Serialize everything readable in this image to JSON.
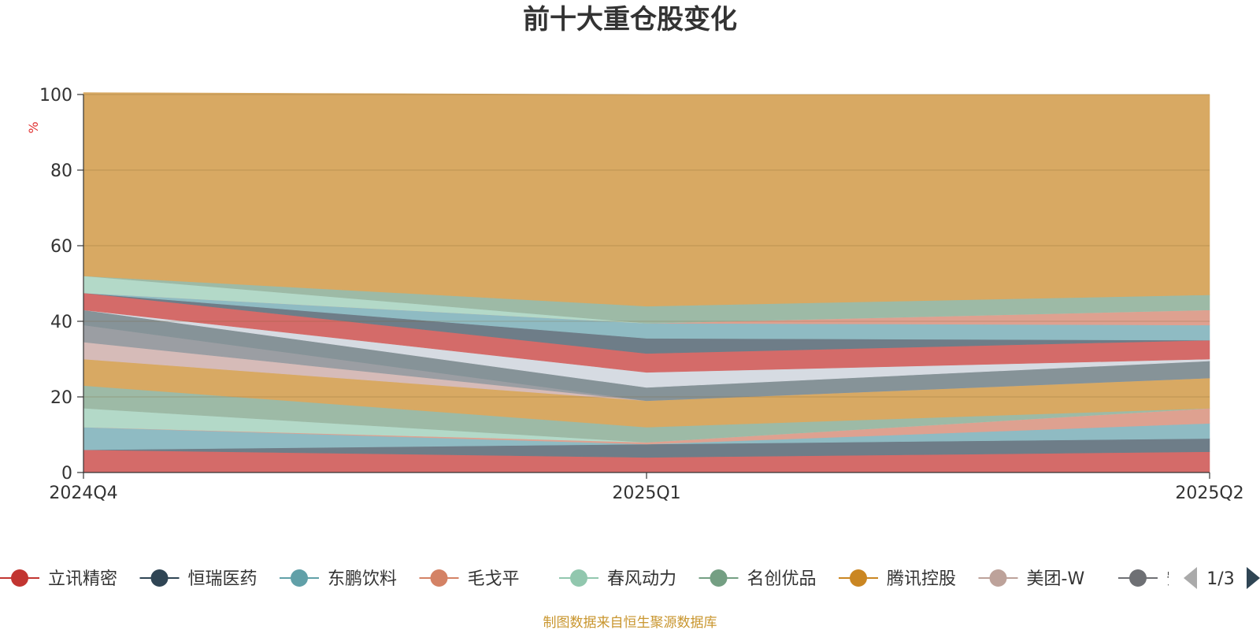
{
  "chart_data": {
    "type": "area",
    "stacked": true,
    "title": "前十大重仓股变化",
    "ylabel": "%",
    "ylim": [
      0,
      100
    ],
    "yticks": [
      0,
      20,
      40,
      60,
      80,
      100
    ],
    "grid": true,
    "categories": [
      "2024Q4",
      "2025Q1",
      "2025Q2"
    ],
    "series": [
      {
        "name": "立讯精密",
        "color": "#d46b69",
        "values": [
          6,
          4,
          5.5
        ]
      },
      {
        "name": "恒瑞医药",
        "color": "#6e7d88",
        "values": [
          0,
          3.5,
          3.5
        ]
      },
      {
        "name": "东鹏饮料",
        "color": "#8fbbc3",
        "values": [
          6,
          0,
          4
        ]
      },
      {
        "name": "毛戈平",
        "color": "#dea190",
        "values": [
          0,
          0.5,
          4
        ]
      },
      {
        "name": "春风动力",
        "color": "#b3d9c8",
        "values": [
          5,
          0,
          0
        ]
      },
      {
        "name": "名创优品",
        "color": "#9dbaa6",
        "values": [
          6,
          4,
          0
        ]
      },
      {
        "name": "腾讯控股",
        "color": "#d8a963",
        "values": [
          7,
          7,
          8
        ]
      },
      {
        "name": "美团-W",
        "color": "#d6bbb8",
        "values": [
          4.5,
          0,
          0
        ]
      },
      {
        "name": "安琪酵母",
        "color": "#9b9ea3",
        "values": [
          4.5,
          0,
          0
        ]
      },
      {
        "name": "",
        "color": "#869398",
        "values": [
          4,
          3.5,
          4.5
        ]
      },
      {
        "name": "",
        "color": "#d6dbe2",
        "values": [
          0,
          4,
          0.5
        ]
      },
      {
        "name": "",
        "color": "#d46b69",
        "values": [
          4.5,
          5,
          5
        ]
      },
      {
        "name": "",
        "color": "#6e7d88",
        "values": [
          0,
          4,
          0
        ]
      },
      {
        "name": "",
        "color": "#8fbbc3",
        "values": [
          0,
          4,
          4
        ]
      },
      {
        "name": "",
        "color": "#dea190",
        "values": [
          0,
          0,
          4
        ]
      },
      {
        "name": "",
        "color": "#b3d9c8",
        "values": [
          4.5,
          0,
          0
        ]
      },
      {
        "name": "",
        "color": "#9dbaa6",
        "values": [
          0,
          4.5,
          4
        ]
      },
      {
        "name": "",
        "color": "#d8a963",
        "values": [
          48.5,
          56,
          53
        ]
      }
    ],
    "legend": {
      "placement": "bottom",
      "items": [
        {
          "name": "立讯精密",
          "color": "#c23531"
        },
        {
          "name": "恒瑞医药",
          "color": "#2f4554"
        },
        {
          "name": "东鹏饮料",
          "color": "#61a0a8"
        },
        {
          "name": "毛戈平",
          "color": "#d48265"
        },
        {
          "name": "春风动力",
          "color": "#91c7ae"
        },
        {
          "name": "名创优品",
          "color": "#749f83"
        },
        {
          "name": "腾讯控股",
          "color": "#ca8622"
        },
        {
          "name": "美团-W",
          "color": "#bda29a"
        },
        {
          "name": "安琪酵母",
          "color": "#6e7074"
        }
      ],
      "page": "1/3"
    },
    "source": "制图数据来自恒生聚源数据库"
  }
}
